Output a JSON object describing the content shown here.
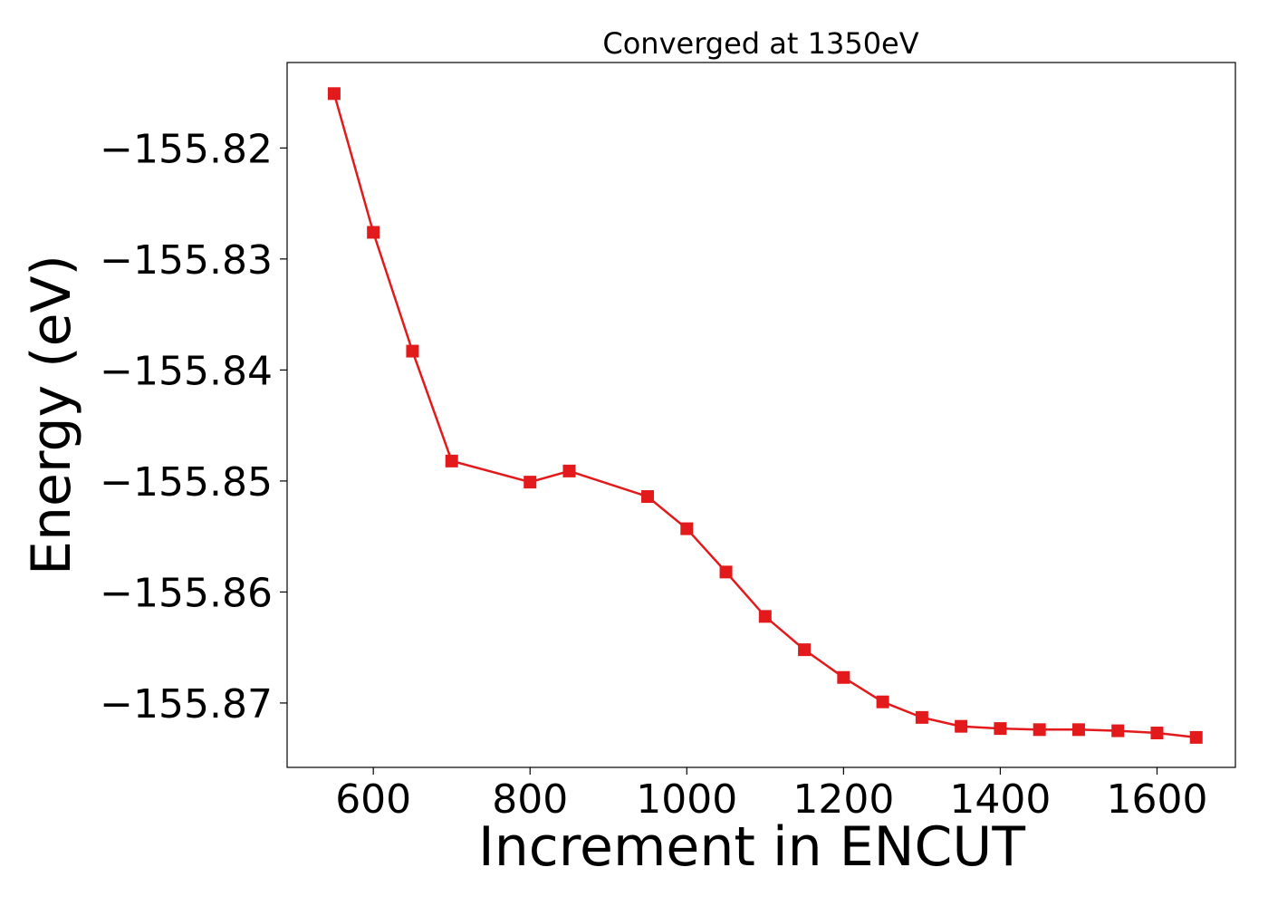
{
  "chart_data": {
    "type": "line",
    "title": "Converged at 1350eV",
    "xlabel": "Increment in ENCUT",
    "ylabel": "Energy (eV)",
    "xlim": [
      490,
      1700
    ],
    "ylim": [
      -155.8758,
      -155.8123
    ],
    "x_ticks": [
      600,
      800,
      1000,
      1200,
      1400,
      1600
    ],
    "x_tick_labels": [
      "600",
      "800",
      "1000",
      "1200",
      "1400",
      "1600"
    ],
    "y_ticks": [
      -155.82,
      -155.83,
      -155.84,
      -155.85,
      -155.86,
      -155.87
    ],
    "y_tick_labels": [
      "−155.82",
      "−155.83",
      "−155.84",
      "−155.85",
      "−155.86",
      "−155.87"
    ],
    "grid": false,
    "legend": false,
    "series": [
      {
        "color": "#e31a1c",
        "marker": "square",
        "x": [
          550,
          600,
          650,
          700,
          800,
          850,
          950,
          1000,
          1050,
          1100,
          1150,
          1200,
          1250,
          1300,
          1350,
          1400,
          1450,
          1500,
          1550,
          1600,
          1650
        ],
        "y": [
          -155.8151,
          -155.8276,
          -155.8383,
          -155.8482,
          -155.8501,
          -155.8491,
          -155.8514,
          -155.8543,
          -155.8582,
          -155.8622,
          -155.8652,
          -155.8677,
          -155.8699,
          -155.8713,
          -155.8721,
          -155.8723,
          -155.8724,
          -155.8724,
          -155.8725,
          -155.8727,
          -155.8731
        ]
      }
    ]
  }
}
